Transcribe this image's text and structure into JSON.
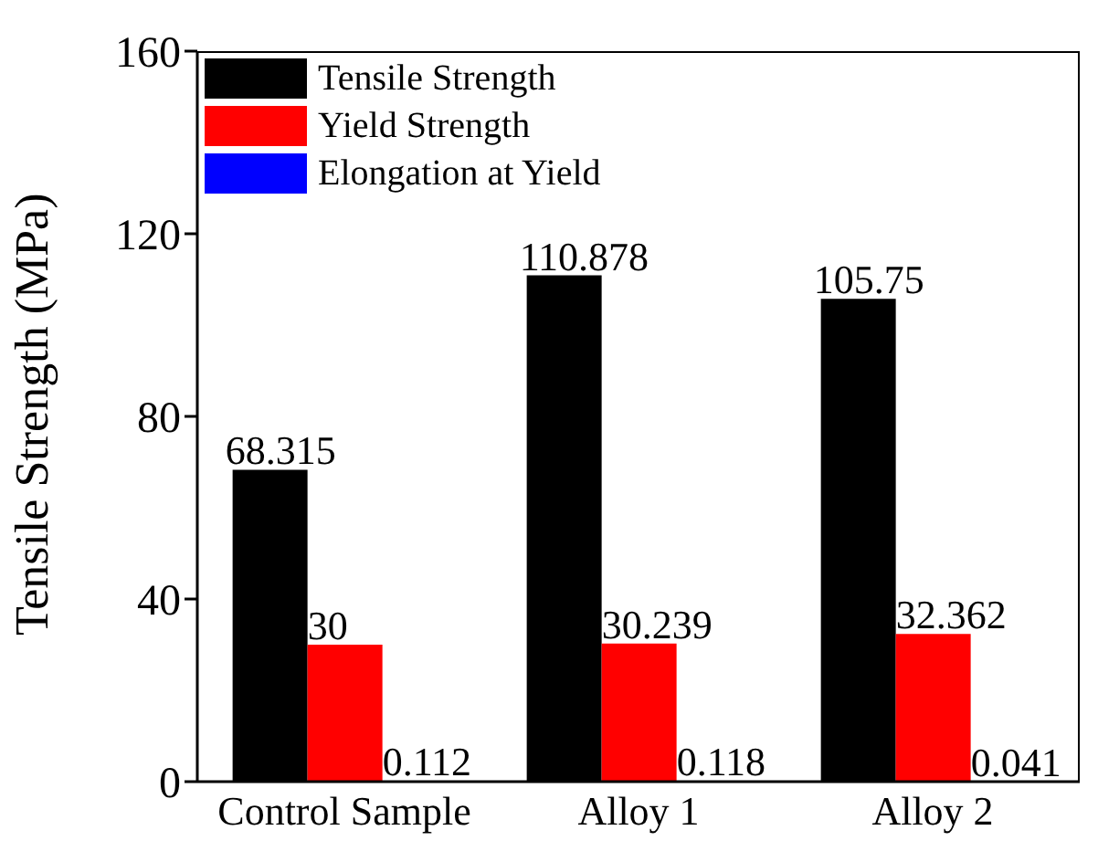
{
  "chart_data": {
    "type": "bar",
    "ylabel": "Tensile Strength (MPa)",
    "categories": [
      "Control Sample",
      "Alloy 1",
      "Alloy 2"
    ],
    "series": [
      {
        "name": "Tensile Strength",
        "color": "#000000",
        "values": [
          68.315,
          110.878,
          105.75
        ]
      },
      {
        "name": "Yield Strength",
        "color": "#ff0000",
        "values": [
          30,
          30.239,
          32.362
        ]
      },
      {
        "name": "Elongation at Yield",
        "color": "#0000ff",
        "values": [
          0.112,
          0.118,
          0.041
        ]
      }
    ],
    "ylim": [
      0,
      160
    ],
    "yticks": [
      0,
      40,
      80,
      120,
      160
    ],
    "data_labels": true,
    "legend": "top left",
    "grid": false
  }
}
